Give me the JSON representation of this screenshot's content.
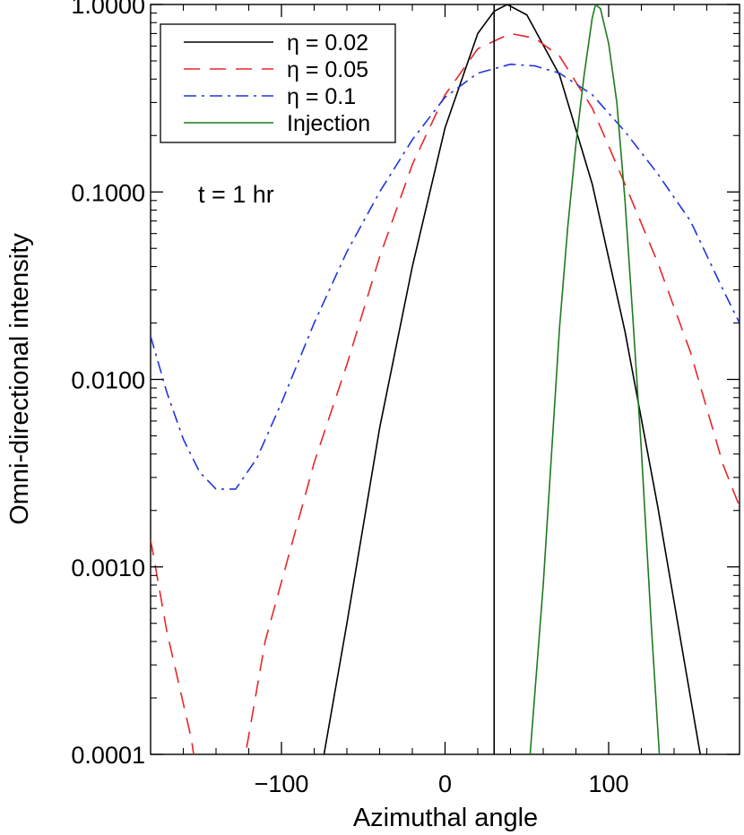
{
  "chart_data": {
    "type": "line",
    "xlabel": "Azimuthal angle",
    "ylabel": "Omni-directional intensity",
    "xlim": [
      -180,
      180
    ],
    "ylim": [
      0.0001,
      1.0
    ],
    "yscale": "log",
    "x_ticks": [
      -100,
      0,
      100
    ],
    "x_tick_labels": [
      "−100",
      "0",
      "100"
    ],
    "y_ticks": [
      0.0001,
      0.001,
      0.01,
      0.1,
      1.0
    ],
    "y_tick_labels": [
      "0.0001",
      "0.0010",
      "0.0100",
      "0.1000",
      "1.0000"
    ],
    "annotation": "t = 1 hr",
    "legend_position": "top-left",
    "series": [
      {
        "name": "η = 0.02",
        "color": "#000000",
        "dash": "solid",
        "points": [
          [
            -74,
            0.0001
          ],
          [
            -60,
            0.0005
          ],
          [
            -40,
            0.0055
          ],
          [
            -20,
            0.04
          ],
          [
            0,
            0.22
          ],
          [
            20,
            0.7
          ],
          [
            30,
            0.92
          ],
          [
            38,
            1.0
          ],
          [
            50,
            0.88
          ],
          [
            70,
            0.42
          ],
          [
            90,
            0.11
          ],
          [
            110,
            0.018
          ],
          [
            130,
            0.0021
          ],
          [
            156,
            0.0001
          ]
        ]
      },
      {
        "name": "η = 0.05",
        "color": "#e8262a",
        "dash": "dashed",
        "points": [
          [
            -180,
            0.0014
          ],
          [
            -170,
            0.00045
          ],
          [
            -155,
            0.00012
          ],
          [
            -145,
            3e-05
          ],
          [
            -135,
            3e-05
          ],
          [
            -122,
            0.0001
          ],
          [
            -110,
            0.0004
          ],
          [
            -80,
            0.0036
          ],
          [
            -60,
            0.012
          ],
          [
            -40,
            0.045
          ],
          [
            -20,
            0.14
          ],
          [
            0,
            0.33
          ],
          [
            20,
            0.58
          ],
          [
            40,
            0.7
          ],
          [
            55,
            0.66
          ],
          [
            70,
            0.53
          ],
          [
            90,
            0.28
          ],
          [
            110,
            0.11
          ],
          [
            130,
            0.042
          ],
          [
            150,
            0.014
          ],
          [
            170,
            0.0035
          ],
          [
            180,
            0.0021
          ]
        ]
      },
      {
        "name": "η = 0.1",
        "color": "#2233dd",
        "dash": "dashdot",
        "points": [
          [
            -180,
            0.017
          ],
          [
            -170,
            0.0085
          ],
          [
            -160,
            0.0048
          ],
          [
            -150,
            0.0032
          ],
          [
            -140,
            0.0026
          ],
          [
            -128,
            0.0026
          ],
          [
            -115,
            0.0038
          ],
          [
            -100,
            0.0075
          ],
          [
            -80,
            0.02
          ],
          [
            -60,
            0.048
          ],
          [
            -40,
            0.1
          ],
          [
            -20,
            0.19
          ],
          [
            0,
            0.32
          ],
          [
            20,
            0.43
          ],
          [
            40,
            0.48
          ],
          [
            55,
            0.47
          ],
          [
            70,
            0.43
          ],
          [
            90,
            0.33
          ],
          [
            110,
            0.21
          ],
          [
            130,
            0.125
          ],
          [
            150,
            0.07
          ],
          [
            170,
            0.03
          ],
          [
            180,
            0.02
          ]
        ]
      },
      {
        "name": "Injection",
        "color": "#1f7a1f",
        "dash": "solid",
        "points": [
          [
            52,
            0.0001
          ],
          [
            60,
            0.0008
          ],
          [
            70,
            0.019
          ],
          [
            75,
            0.065
          ],
          [
            80,
            0.18
          ],
          [
            85,
            0.42
          ],
          [
            90,
            0.85
          ],
          [
            92,
            1.0
          ],
          [
            95,
            0.95
          ],
          [
            100,
            0.62
          ],
          [
            105,
            0.3
          ],
          [
            110,
            0.09
          ],
          [
            115,
            0.02
          ],
          [
            120,
            0.0042
          ],
          [
            126,
            0.0005
          ],
          [
            131,
            0.0001
          ]
        ]
      }
    ],
    "vertical_line": {
      "x": 30,
      "color": "#000000"
    }
  }
}
